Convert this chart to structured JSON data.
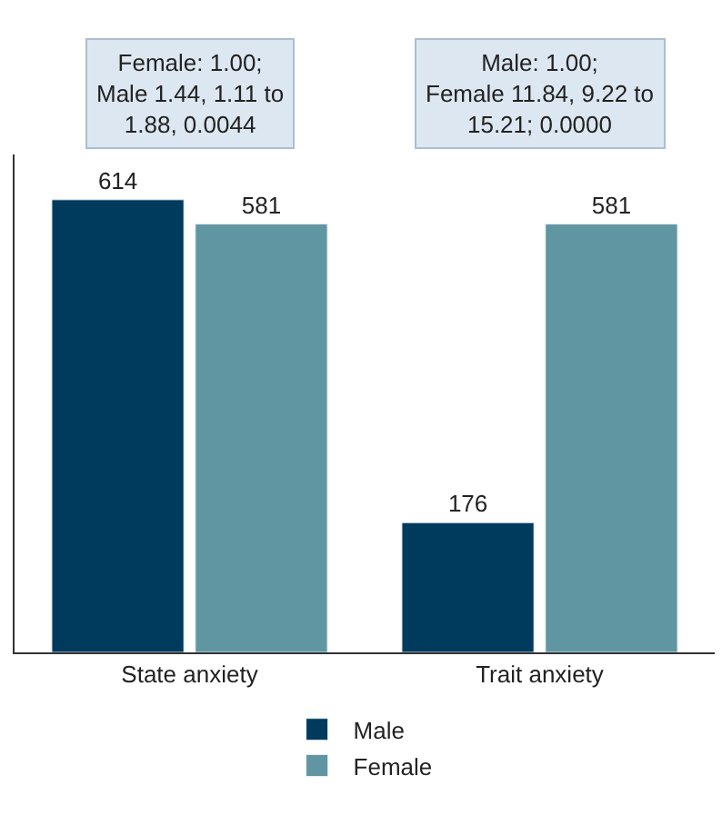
{
  "chart_data": {
    "type": "bar",
    "categories": [
      "State anxiety",
      "Trait anxiety"
    ],
    "series": [
      {
        "name": "Male",
        "color": "#003a5d",
        "values": [
          614,
          176
        ]
      },
      {
        "name": "Female",
        "color": "#6096a2",
        "values": [
          581,
          581
        ]
      }
    ],
    "data_labels": true,
    "legend": "bottom",
    "tick_labels": "x",
    "annotations": [
      "Female: 1.00; Male 1.44, 1.11 to 1.88, 0.0044",
      "Male: 1.00; Female 11.84, 9.22 to 15.21; 0.0000"
    ]
  }
}
